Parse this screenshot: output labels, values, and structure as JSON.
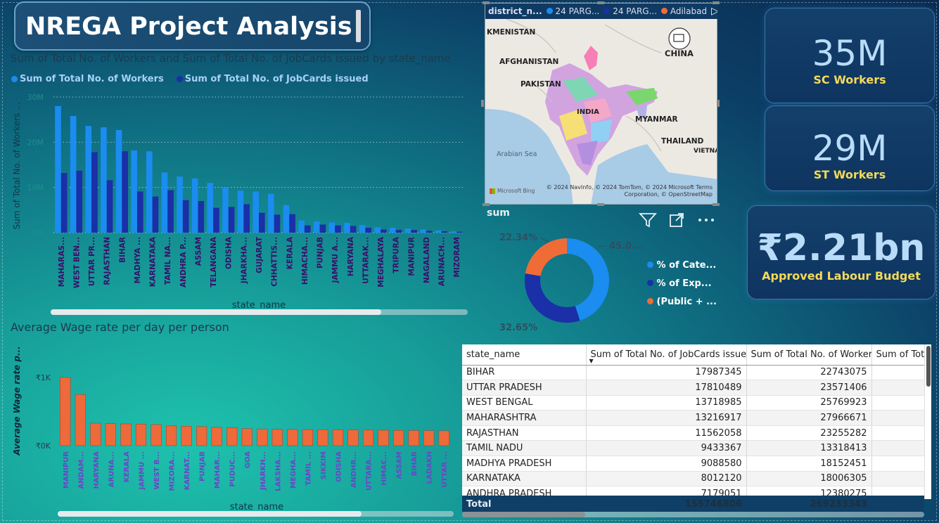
{
  "title": "NREGA Project Analysis",
  "workers_chart": {
    "title": "Sum of Total No. of Workers and Sum of Total No. of JobCards issued by state_name",
    "legend": [
      {
        "label": "Sum of Total No. of Workers",
        "color": "#1b8cf0"
      },
      {
        "label": "Sum of Total No. of JobCards issued",
        "color": "#1a2fa8"
      }
    ],
    "ylabel": "Sum of Total No. of Workers ...",
    "xlabel": "state_name",
    "yticks": [
      "0M",
      "10M",
      "20M",
      "30M"
    ]
  },
  "wage_chart": {
    "title": "Average Wage rate per day per person",
    "ylabel": "Average Wage rate p...",
    "xlabel": "state_name",
    "yticks": [
      "₹0K",
      "₹1K"
    ]
  },
  "chart_data": [
    {
      "type": "bar",
      "title": "Sum of Total No. of Workers and Sum of Total No. of JobCards issued by state_name",
      "xlabel": "state_name",
      "ylabel": "Sum of Total No. of Workers ...",
      "ylim": [
        0,
        30
      ],
      "categories": [
        "MAHARAS...",
        "WEST BEN...",
        "UTTAR PR...",
        "RAJASTHAN",
        "BIHAR",
        "MADHYA ...",
        "KARNATAKA",
        "TAMIL NA...",
        "ANDHRA P...",
        "ASSAM",
        "TELANGANA",
        "ODISHA",
        "JHARKHA...",
        "GUJARAT",
        "CHHATTIS...",
        "KERALA",
        "HIMACHA...",
        "PUNJAB",
        "JAMMU A...",
        "HARYANA",
        "UTTARAK...",
        "MEGHALAYA",
        "TRIPURA",
        "MANIPUR",
        "NAGALAND",
        "ARUNACH...",
        "MIZORAM"
      ],
      "series": [
        {
          "name": "Sum of Total No. of Workers",
          "values": [
            28.0,
            25.8,
            23.6,
            23.3,
            22.7,
            18.2,
            18.0,
            13.3,
            12.4,
            12.0,
            11.0,
            10.0,
            9.3,
            9.1,
            8.6,
            6.1,
            2.7,
            2.5,
            2.3,
            2.2,
            1.7,
            1.2,
            1.1,
            0.9,
            0.7,
            0.5,
            0.3
          ]
        },
        {
          "name": "Sum of Total No. of JobCards issued",
          "values": [
            13.2,
            13.7,
            17.8,
            11.6,
            18.0,
            9.1,
            8.0,
            9.4,
            7.2,
            7.0,
            5.5,
            5.7,
            6.3,
            4.4,
            4.0,
            4.1,
            1.6,
            1.8,
            1.6,
            1.5,
            1.1,
            0.7,
            0.6,
            0.6,
            0.4,
            0.3,
            0.2
          ]
        }
      ]
    },
    {
      "type": "bar",
      "title": "Average Wage rate per day per person",
      "xlabel": "state_name",
      "ylabel": "Average Wage rate p...",
      "ylim": [
        0,
        1000
      ],
      "categories": [
        "MANIPUR",
        "ANDAM...",
        "HARYANA",
        "ARUNA...",
        "KERALA",
        "JAMMU ...",
        "WEST B...",
        "MIZORA...",
        "KARNAT...",
        "PUNJAB",
        "MAHAR...",
        "PUDUC...",
        "GOA",
        "JHARKH...",
        "LAKSHA...",
        "MEGHA...",
        "TAMIL ...",
        "SIKKIM",
        "ODISHA",
        "ANDHR...",
        "UTTARA...",
        "HIMAC...",
        "ASSAM",
        "BIHAR",
        "LADAKH",
        "UTTAR ..."
      ],
      "values": [
        1000,
        750,
        330,
        325,
        320,
        315,
        310,
        290,
        285,
        280,
        270,
        265,
        250,
        245,
        240,
        238,
        236,
        234,
        232,
        230,
        228,
        226,
        224,
        222,
        220,
        218
      ]
    },
    {
      "type": "pie",
      "title": "sum",
      "legend": [
        "% of Cate...",
        "% of Exp...",
        "(Public + ..."
      ],
      "values": [
        45.0,
        32.65,
        22.34
      ],
      "slice_labels": [
        "45.0...",
        "32.65%",
        "22.34%"
      ],
      "colors": [
        "#1b8cf0",
        "#1a2fa8",
        "#ef6c36"
      ]
    }
  ],
  "map": {
    "legend_label": "district_n...",
    "legend_items": [
      {
        "label": "24 PARG...",
        "color": "#1b8cf0"
      },
      {
        "label": "24 PARG...",
        "color": "#1a2fa8"
      },
      {
        "label": "Adilabad",
        "color": "#ef6c36"
      }
    ],
    "place_labels": [
      "KMENISTAN",
      "AFGHANISTAN",
      "PAKISTAN",
      "INDIA",
      "CHINA",
      "MYANMAR",
      "THAILAND",
      "VIETNA",
      "Arabian Sea"
    ],
    "attribution": "© 2024 NavInfo, © 2024 TomTom, © 2024 Microsoft Terms Corporation, © OpenStreetMap",
    "logo": "Microsoft Bing"
  },
  "donut": {
    "title": "sum",
    "labels": [
      "45.0...",
      "32.65%",
      "22.34%"
    ],
    "legend": [
      {
        "label": "% of Cate...",
        "color": "#1b8cf0"
      },
      {
        "label": "% of Exp...",
        "color": "#1a2fa8"
      },
      {
        "label": "(Public + ...",
        "color": "#ef6c36"
      }
    ]
  },
  "kpis": [
    {
      "value": "35M",
      "label": "SC Workers"
    },
    {
      "value": "29M",
      "label": "ST Workers"
    },
    {
      "value": "₹2.21bn",
      "label": "Approved Labour Budget"
    }
  ],
  "table": {
    "columns": [
      "state_name",
      "Sum of Total No. of JobCards issued",
      "Sum of Total No. of Workers",
      "Sum of Tot"
    ],
    "rows": [
      [
        "BIHAR",
        "17987345",
        "22743075"
      ],
      [
        "UTTAR PRADESH",
        "17810489",
        "23571406"
      ],
      [
        "WEST BENGAL",
        "13718985",
        "25769923"
      ],
      [
        "MAHARASHTRA",
        "13216917",
        "27966671"
      ],
      [
        "RAJASTHAN",
        "11562058",
        "23255282"
      ],
      [
        "TAMIL NADU",
        "9433367",
        "13318413"
      ],
      [
        "MADHYA PRADESH",
        "9088580",
        "18152451"
      ],
      [
        "KARNATAKA",
        "8012120",
        "18006305"
      ],
      [
        "ANDHRA PRADESH",
        "7179051",
        "12380275"
      ]
    ],
    "total": [
      "Total",
      "155746806",
      "269233343"
    ]
  }
}
